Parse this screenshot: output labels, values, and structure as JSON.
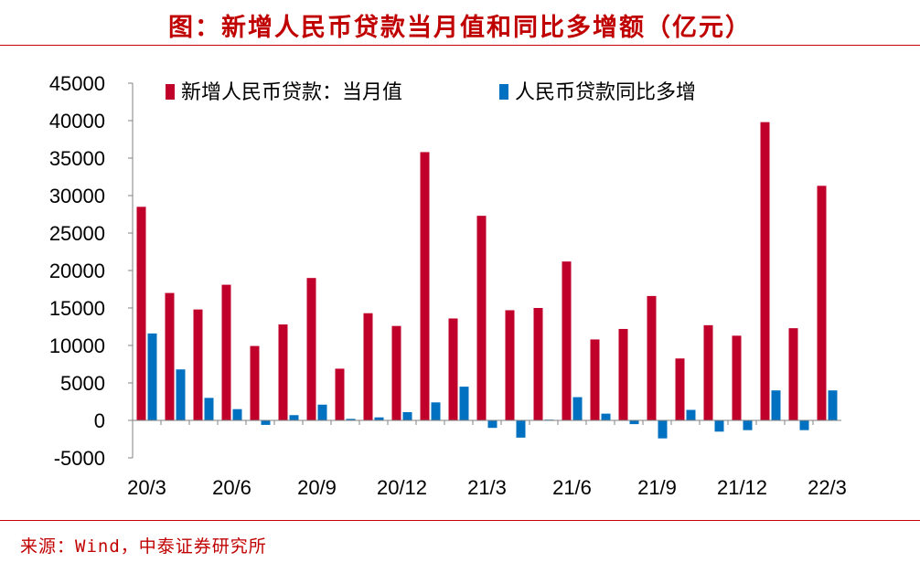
{
  "title": "图：新增人民币贷款当月值和同比多增额（亿元）",
  "source": "来源：Wind，中泰证券研究所",
  "colors": {
    "series1": "#c0002a",
    "series2": "#0070c0",
    "accent": "#c00000"
  },
  "chart_data": {
    "type": "bar",
    "categories": [
      "20/3",
      "20/4",
      "20/5",
      "20/6",
      "20/7",
      "20/8",
      "20/9",
      "20/10",
      "20/11",
      "20/12",
      "21/1",
      "21/2",
      "21/3",
      "21/4",
      "21/5",
      "21/6",
      "21/7",
      "21/8",
      "21/9",
      "21/10",
      "21/11",
      "21/12",
      "22/1",
      "22/2",
      "22/3"
    ],
    "x_tick_labels": [
      "20/3",
      "20/6",
      "20/9",
      "20/12",
      "21/3",
      "21/6",
      "21/9",
      "21/12",
      "22/3"
    ],
    "series": [
      {
        "name": "新增人民币贷款：当月值",
        "values": [
          28500,
          17000,
          14800,
          18100,
          9927,
          12800,
          19000,
          6898,
          14300,
          12600,
          35800,
          13600,
          27300,
          14700,
          15000,
          21200,
          10800,
          12200,
          16600,
          8262,
          12700,
          11300,
          39800,
          12300,
          31300
        ]
      },
      {
        "name": "人民币贷款同比多增",
        "values": [
          11600,
          6800,
          3000,
          1500,
          -600,
          700,
          2100,
          200,
          400,
          1100,
          2400,
          4500,
          -1000,
          -2300,
          100,
          3100,
          900,
          -500,
          -2400,
          1400,
          -1500,
          -1300,
          4000,
          -1300,
          4000
        ]
      }
    ],
    "ylim": [
      -5000,
      45000
    ],
    "yticks": [
      -5000,
      0,
      5000,
      10000,
      15000,
      20000,
      25000,
      30000,
      35000,
      40000,
      45000
    ],
    "legend": "top",
    "grid": false
  }
}
